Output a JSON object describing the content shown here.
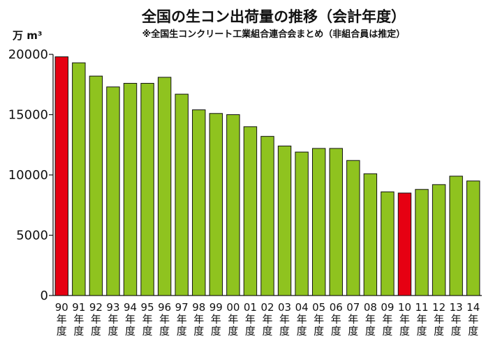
{
  "chart_data": {
    "type": "bar",
    "title": "全国の生コン出荷量の推移（会計年度）",
    "subtitle": "※全国生コンクリート工業組合連合会まとめ（非組合員は推定）",
    "unit": "万 m³",
    "ylim": [
      0,
      20000
    ],
    "yticks": [
      0,
      5000,
      10000,
      15000,
      20000
    ],
    "categories": [
      "90年度",
      "91年度",
      "92年度",
      "93年度",
      "94年度",
      "95年度",
      "96年度",
      "97年度",
      "98年度",
      "99年度",
      "00年度",
      "01年度",
      "02年度",
      "03年度",
      "04年度",
      "05年度",
      "06年度",
      "07年度",
      "08年度",
      "09年度",
      "10年度",
      "11年度",
      "12年度",
      "13年度",
      "14年度"
    ],
    "category_parts": [
      [
        "90",
        "年",
        "度"
      ],
      [
        "91",
        "年",
        "度"
      ],
      [
        "92",
        "年",
        "度"
      ],
      [
        "93",
        "年",
        "度"
      ],
      [
        "94",
        "年",
        "度"
      ],
      [
        "95",
        "年",
        "度"
      ],
      [
        "96",
        "年",
        "度"
      ],
      [
        "97",
        "年",
        "度"
      ],
      [
        "98",
        "年",
        "度"
      ],
      [
        "99",
        "年",
        "度"
      ],
      [
        "00",
        "年",
        "度"
      ],
      [
        "01",
        "年",
        "度"
      ],
      [
        "02",
        "年",
        "度"
      ],
      [
        "03",
        "年",
        "度"
      ],
      [
        "04",
        "年",
        "度"
      ],
      [
        "05",
        "年",
        "度"
      ],
      [
        "06",
        "年",
        "度"
      ],
      [
        "07",
        "年",
        "度"
      ],
      [
        "08",
        "年",
        "度"
      ],
      [
        "09",
        "年",
        "度"
      ],
      [
        "10",
        "年",
        "度"
      ],
      [
        "11",
        "年",
        "度"
      ],
      [
        "12",
        "年",
        "度"
      ],
      [
        "13",
        "年",
        "度"
      ],
      [
        "14",
        "年",
        "度"
      ]
    ],
    "values": [
      19800,
      19300,
      18200,
      17300,
      17600,
      17600,
      18100,
      16700,
      15400,
      15100,
      15000,
      14000,
      13200,
      12400,
      11900,
      12200,
      12200,
      11200,
      10100,
      8600,
      8500,
      8800,
      9200,
      9900,
      9500
    ],
    "highlight_categories": [
      "90年度",
      "10年度"
    ],
    "colors": {
      "default_bar": "#8fc31f",
      "highlight_bar": "#e60012",
      "axis": "#111111",
      "text": "#111111"
    },
    "grid": false,
    "legend": "none"
  }
}
